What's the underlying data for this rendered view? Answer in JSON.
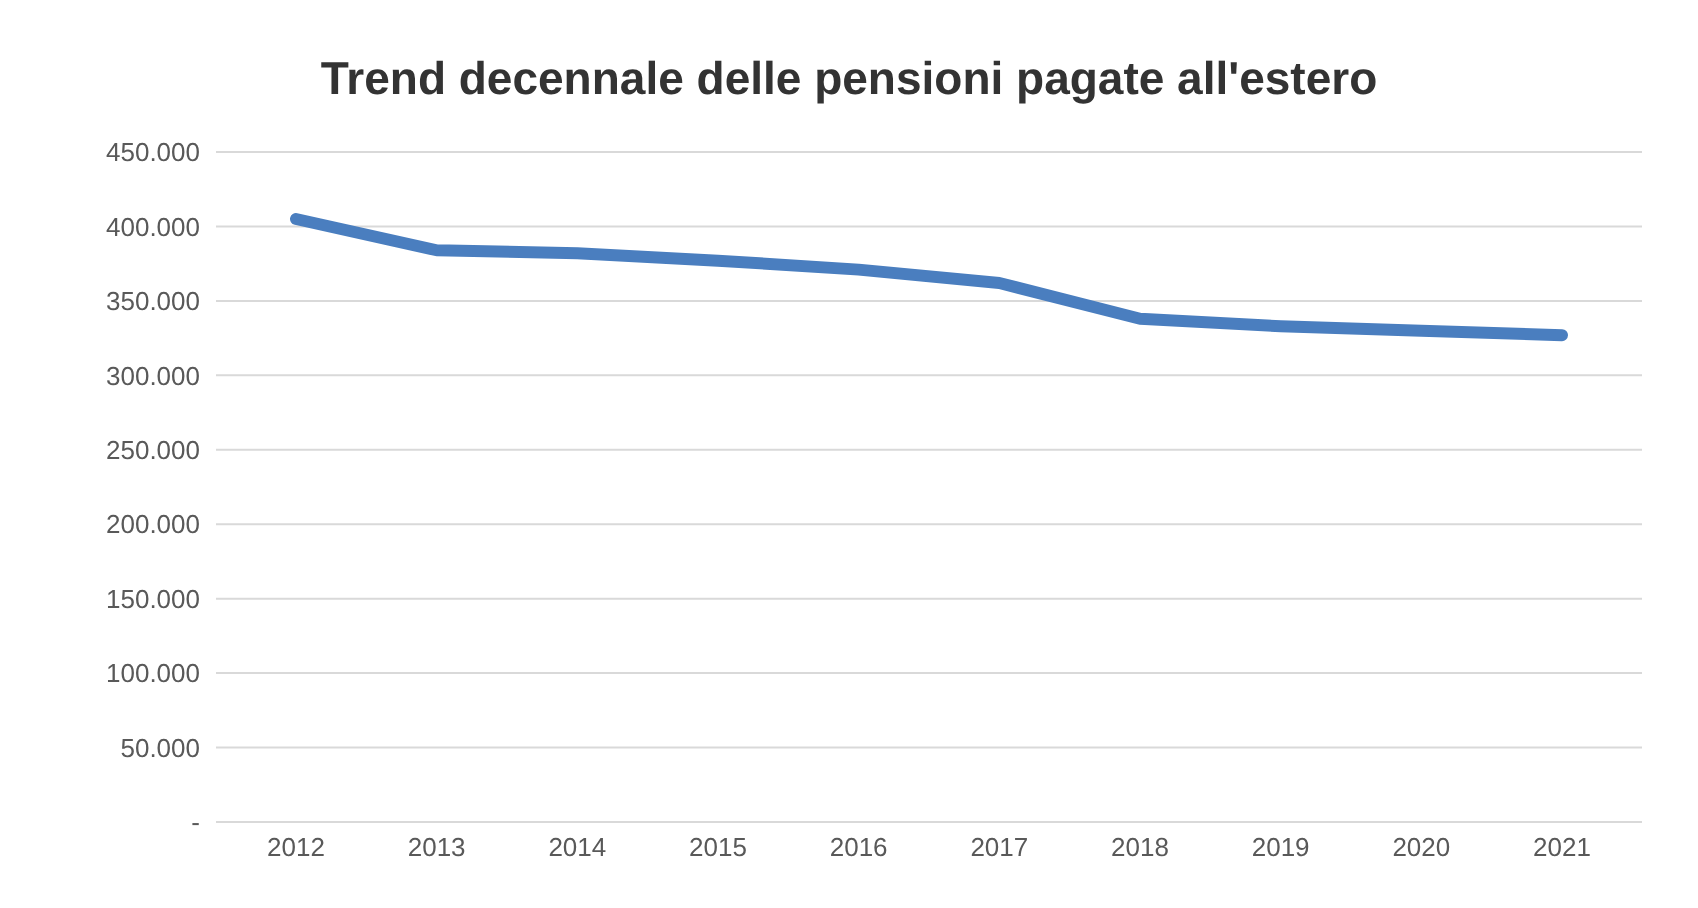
{
  "chart_data": {
    "type": "line",
    "title": "Trend decennale delle pensioni pagate all'estero",
    "categories": [
      "2012",
      "2013",
      "2014",
      "2015",
      "2016",
      "2017",
      "2018",
      "2019",
      "2020",
      "2021"
    ],
    "series": [
      {
        "color": "#4a7ebf",
        "values": [
          405000,
          384000,
          382000,
          377000,
          371000,
          362000,
          338000,
          333000,
          330000,
          327000
        ]
      }
    ],
    "ylim": [
      0,
      450000
    ],
    "yticks": [
      {
        "value": 0,
        "label": "-"
      },
      {
        "value": 50000,
        "label": "50.000"
      },
      {
        "value": 100000,
        "label": "100.000"
      },
      {
        "value": 150000,
        "label": "150.000"
      },
      {
        "value": 200000,
        "label": "200.000"
      },
      {
        "value": 250000,
        "label": "250.000"
      },
      {
        "value": 300000,
        "label": "300.000"
      },
      {
        "value": 350000,
        "label": "350.000"
      },
      {
        "value": 400000,
        "label": "400.000"
      },
      {
        "value": 450000,
        "label": "450.000"
      }
    ],
    "grid": "y",
    "marker": "none",
    "line_style": "solid"
  }
}
